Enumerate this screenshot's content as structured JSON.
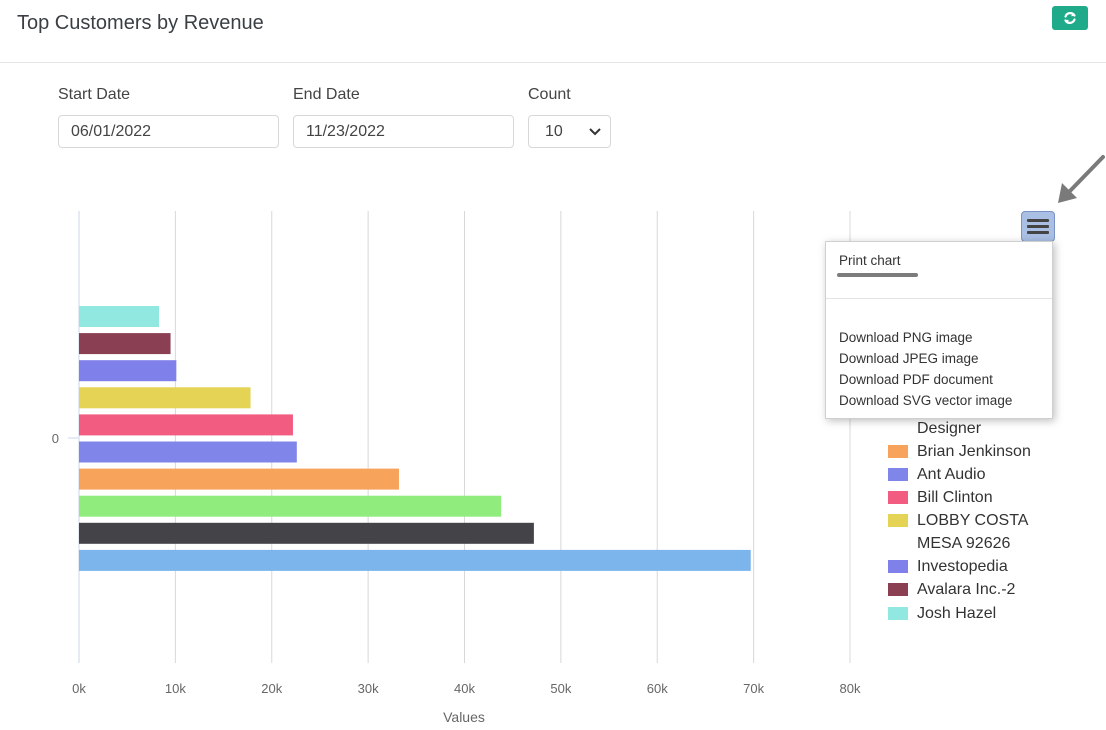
{
  "header": {
    "title": "Top Customers by Revenue",
    "refresh_icon": "refresh-icon",
    "refresh_color": "#1fab89"
  },
  "filters": {
    "start_date_label": "Start Date",
    "start_date_value": "06/01/2022",
    "end_date_label": "End Date",
    "end_date_value": "11/23/2022",
    "count_label": "Count",
    "count_value": "10"
  },
  "export_menu": {
    "items": [
      "Print chart",
      "Download PNG image",
      "Download JPEG image",
      "Download PDF document",
      "Download SVG vector image"
    ],
    "menu_icon": "hamburger-icon"
  },
  "chart_data": {
    "type": "bar",
    "orientation": "horizontal",
    "categories": [
      "0"
    ],
    "xlabel": "Values",
    "xlim": [
      0,
      80000
    ],
    "xticks": [
      "0k",
      "10k",
      "20k",
      "30k",
      "40k",
      "50k",
      "60k",
      "70k",
      "80k"
    ],
    "grid": true,
    "legend_placement": "right",
    "series": [
      {
        "name": "Josh Hazel",
        "value": 8300,
        "color": "#90e8e0"
      },
      {
        "name": "Avalara Inc.-2",
        "value": 9500,
        "color": "#8b3f52"
      },
      {
        "name": "Investopedia",
        "value": 10100,
        "color": "#7f80ea"
      },
      {
        "name": "LOBBY COSTA MESA 92626",
        "value": 17800,
        "color": "#e4d354"
      },
      {
        "name": "Bill Clinton",
        "value": 22200,
        "color": "#f15c80"
      },
      {
        "name": "Ant Audio",
        "value": 22600,
        "color": "#8085e9"
      },
      {
        "name": "Brian Jenkinson",
        "value": 33200,
        "color": "#f7a35c"
      },
      {
        "name": "",
        "value": 43800,
        "color": "#90ed7d"
      },
      {
        "name": "",
        "value": 47200,
        "color": "#434348"
      },
      {
        "name": "",
        "value": 69700,
        "color": "#7cb5ec"
      }
    ],
    "legend_visible_partial": [
      "Designer",
      "Brian Jenkinson",
      "Ant Audio",
      "Bill Clinton",
      "LOBBY COSTA",
      "MESA 92626",
      "Investopedia",
      "Avalara Inc.-2",
      "Josh Hazel"
    ]
  }
}
